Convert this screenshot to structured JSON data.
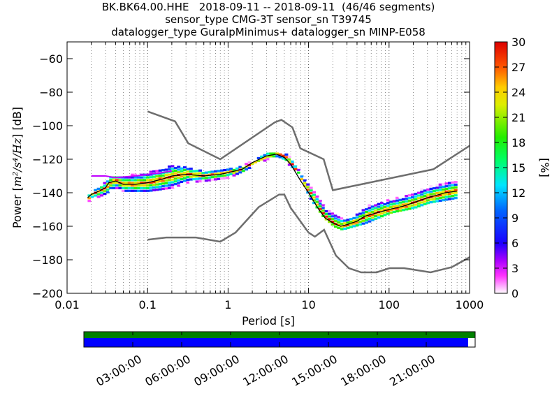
{
  "title_lines": [
    "BK.BK64.00.HHE   2018-09-11 -- 2018-09-11  (46/46 segments)",
    "sensor_type CMG-3T sensor_sn T39745",
    "datalogger_type GuralpMinimus+ datalogger_sn MINP-E058"
  ],
  "colors": {
    "model_curve": "#6e6e6e",
    "mean_curve": "#000000",
    "coverage_top": "#008000",
    "coverage_data": "#0000ff"
  },
  "chart_data": {
    "type": "heatmap",
    "subtype": "probabilistic-power-spectral-density",
    "xlabel": "Period [s]",
    "ylabel_text": "Power [",
    "ylabel_math": "m²/s⁴/Hz",
    "ylabel_close": "] [dB]",
    "xscale": "log",
    "xlim": [
      0.01,
      1000
    ],
    "ylim": [
      -200,
      -50
    ],
    "x_ticks": [
      0.01,
      0.1,
      1,
      10,
      100,
      1000
    ],
    "x_ticklabels": [
      "0.01",
      "0.1",
      "1",
      "10",
      "100",
      "1000"
    ],
    "y_ticks": [
      -200,
      -180,
      -160,
      -140,
      -120,
      -100,
      -80,
      -60
    ],
    "y_ticklabels": [
      "−200",
      "−180",
      "−160",
      "−140",
      "−120",
      "−100",
      "−80",
      "−60"
    ],
    "grid": "vertical dotted at log minor ticks",
    "colorbar": {
      "label": "[%]",
      "min": 0,
      "max": 30,
      "ticks": [
        0,
        3,
        6,
        9,
        12,
        15,
        18,
        21,
        24,
        27,
        30
      ],
      "colormap": "pqlx rainbow (white-magenta-blue-cyan-green-yellow-red)"
    },
    "new_high_noise_model": {
      "period": [
        0.1,
        0.22,
        0.32,
        0.8,
        3.8,
        4.6,
        6.3,
        7.9,
        15.4,
        20,
        354.8,
        1000
      ],
      "power": [
        -91.5,
        -97.4,
        -110.5,
        -120,
        -98,
        -96.5,
        -101,
        -113.5,
        -120,
        -138.5,
        -126,
        -112
      ]
    },
    "new_low_noise_model": {
      "period": [
        0.1,
        0.17,
        0.4,
        0.8,
        1.24,
        2.4,
        4.3,
        5,
        6,
        10,
        12,
        15.6,
        21.9,
        31.6,
        45,
        70,
        101,
        154,
        328,
        600,
        1000
      ],
      "power": [
        -168,
        -166.7,
        -166.7,
        -169.2,
        -163.7,
        -148.6,
        -141.1,
        -141.1,
        -149,
        -163.8,
        -166.2,
        -162.1,
        -177.5,
        -185,
        -187.5,
        -187.5,
        -185,
        -185,
        -187.5,
        -184.4,
        -178.5
      ]
    },
    "mean_psd": {
      "period": [
        0.018,
        0.02,
        0.025,
        0.03,
        0.033,
        0.04,
        0.05,
        0.07,
        0.1,
        0.15,
        0.2,
        0.3,
        0.5,
        0.8,
        1,
        1.5,
        2,
        3,
        4,
        5,
        6,
        8,
        10,
        13,
        16,
        20,
        25,
        30,
        40,
        50,
        70,
        100,
        150,
        200,
        300,
        500,
        700
      ],
      "power": [
        -143,
        -141,
        -139,
        -137,
        -134,
        -133,
        -135,
        -135,
        -134,
        -132,
        -130,
        -129,
        -130,
        -129,
        -128,
        -126,
        -122,
        -118,
        -117,
        -119,
        -123,
        -133,
        -140,
        -149,
        -155,
        -158,
        -160,
        -159,
        -157,
        -154,
        -152,
        -150,
        -148,
        -146,
        -143,
        -140,
        -139
      ]
    },
    "density_band": {
      "period": [
        0.018,
        0.025,
        0.033,
        0.05,
        0.1,
        0.2,
        0.3,
        0.5,
        1,
        2,
        3,
        4,
        5,
        7,
        10,
        15,
        20,
        25,
        30,
        50,
        70,
        100,
        200,
        300,
        700
      ],
      "upper": [
        -141,
        -136,
        -130,
        -130,
        -127,
        -124,
        -125,
        -127,
        -126,
        -121,
        -116,
        -116,
        -117,
        -122,
        -136,
        -146,
        -151,
        -154,
        -154,
        -148,
        -144,
        -142,
        -138,
        -135,
        -132
      ],
      "lower": [
        -145,
        -142,
        -139,
        -139,
        -139,
        -137,
        -134,
        -133,
        -131,
        -124,
        -120,
        -120,
        -122,
        -127,
        -143,
        -155,
        -160,
        -162,
        -161,
        -158,
        -155,
        -152,
        -149,
        -146,
        -143
      ]
    },
    "outlier_trace": {
      "period": [
        0.02,
        0.03,
        0.04,
        0.07,
        0.1,
        0.15,
        0.2
      ],
      "power": [
        -130,
        -130,
        -131,
        -130,
        -129,
        -128,
        -127
      ]
    }
  },
  "coverage": {
    "time_ticks": [
      "03:00:00",
      "06:00:00",
      "09:00:00",
      "12:00:00",
      "15:00:00",
      "18:00:00",
      "21:00:00"
    ],
    "data_fraction": 0.982
  }
}
